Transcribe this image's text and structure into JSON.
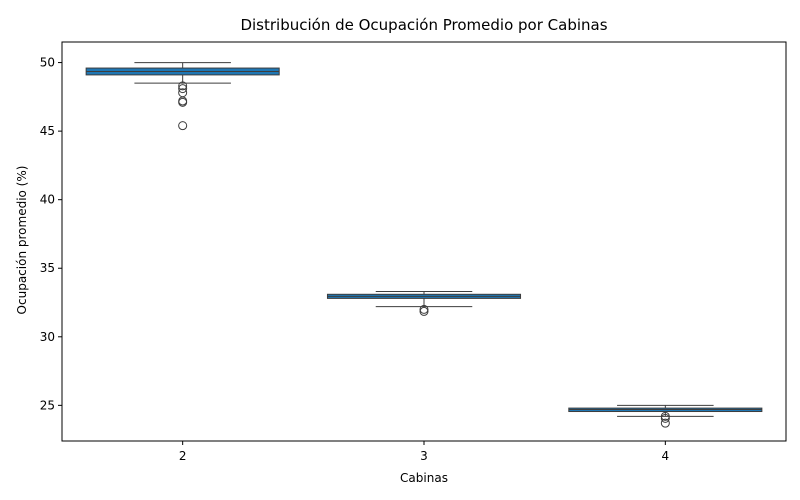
{
  "chart_data": {
    "type": "box",
    "title": "Distribución de Ocupación Promedio por Cabinas",
    "xlabel": "Cabinas",
    "ylabel": "Ocupación promedio (%)",
    "ylim": [
      22.4,
      51.5
    ],
    "yticks": [
      25,
      30,
      35,
      40,
      45,
      50
    ],
    "grid": false,
    "box_color": "#1f77b4",
    "edge_color": "#3d3d3d",
    "categories": [
      "2",
      "3",
      "4"
    ],
    "boxes": [
      {
        "category": "2",
        "whisker_low": 48.5,
        "q1": 49.1,
        "median": 49.35,
        "q3": 49.6,
        "whisker_high": 50.0,
        "outliers": [
          48.3,
          48.1,
          47.8,
          47.2,
          47.1,
          45.4
        ]
      },
      {
        "category": "3",
        "whisker_low": 32.2,
        "q1": 32.8,
        "median": 32.95,
        "q3": 33.1,
        "whisker_high": 33.3,
        "outliers": [
          32.0,
          31.85
        ]
      },
      {
        "category": "4",
        "whisker_low": 24.2,
        "q1": 24.55,
        "median": 24.7,
        "q3": 24.8,
        "whisker_high": 25.0,
        "outliers": [
          24.2,
          24.05,
          23.7
        ]
      }
    ]
  }
}
